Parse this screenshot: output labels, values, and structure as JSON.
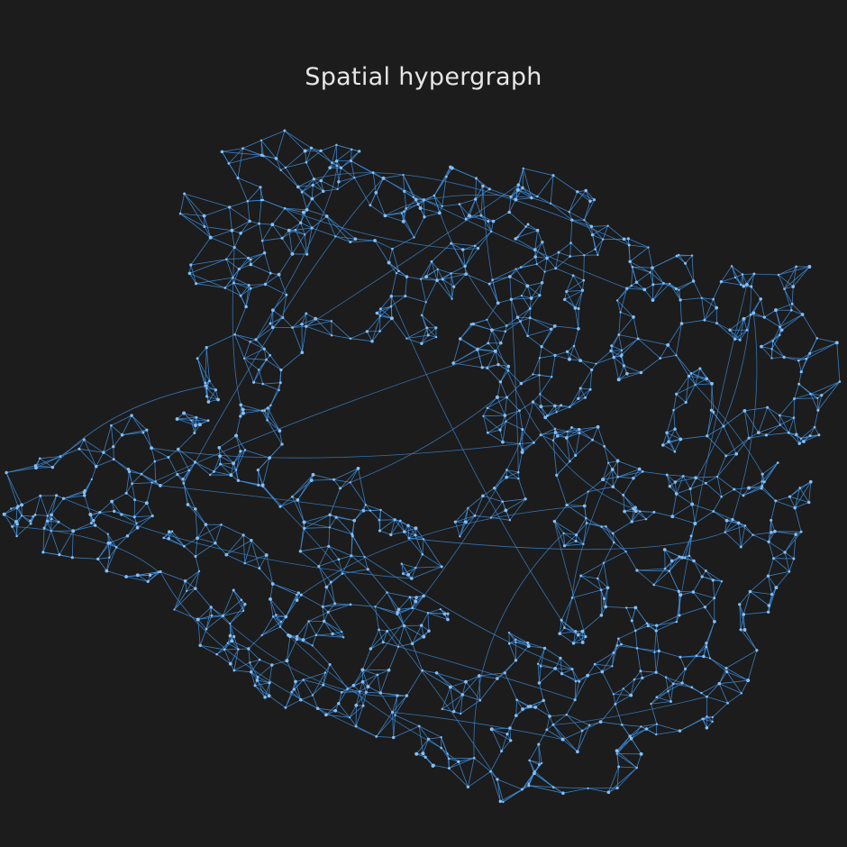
{
  "title": "Spatial hypergraph",
  "colors": {
    "background": "#1c1c1c",
    "edge": "#3d8fe0",
    "node": "#86bff5",
    "title": "#e6e6e6"
  }
}
